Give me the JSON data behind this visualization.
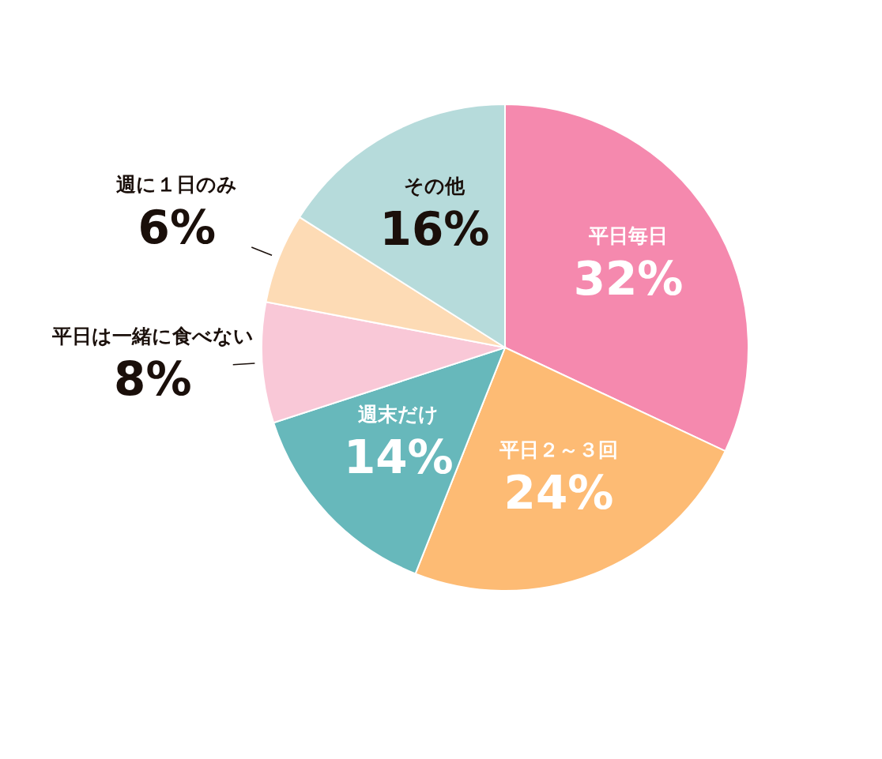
{
  "chart_data": {
    "type": "pie",
    "categories": [
      "平日毎日",
      "平日２～３回",
      "週末だけ",
      "平日は一緒に食べない",
      "週に１日のみ",
      "その他"
    ],
    "values": [
      32,
      24,
      14,
      8,
      6,
      16
    ],
    "colors": [
      "#f589ae",
      "#fdbb74",
      "#67b8bb",
      "#f9c8d7",
      "#fddbb5",
      "#b6dbdb"
    ],
    "value_labels": [
      "32%",
      "24%",
      "14%",
      "8%",
      "6%",
      "16%"
    ]
  }
}
